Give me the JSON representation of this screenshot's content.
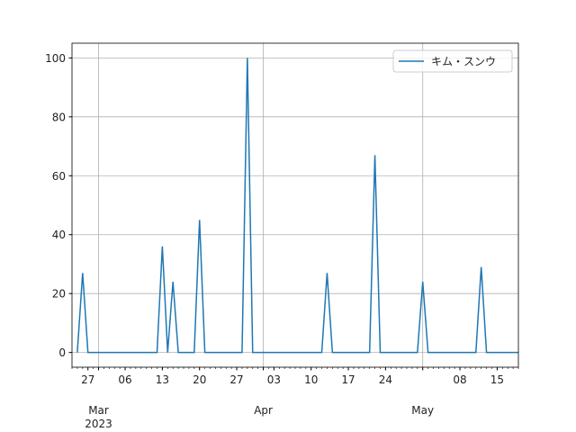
{
  "chart_data": {
    "type": "line",
    "x": [
      "2023-02-25",
      "2023-02-26",
      "2023-02-27",
      "2023-03-12",
      "2023-03-13",
      "2023-03-14",
      "2023-03-15",
      "2023-03-16",
      "2023-03-19",
      "2023-03-20",
      "2023-03-21",
      "2023-03-28",
      "2023-03-29",
      "2023-03-30",
      "2023-04-12",
      "2023-04-13",
      "2023-04-14",
      "2023-04-21",
      "2023-04-22",
      "2023-04-23",
      "2023-04-30",
      "2023-05-01",
      "2023-05-02",
      "2023-05-11",
      "2023-05-12",
      "2023-05-13",
      "2023-05-19"
    ],
    "series": [
      {
        "name": "キム・スンウ",
        "color": "#1f77b4",
        "values": [
          0,
          27,
          0,
          0,
          36,
          0,
          24,
          0,
          0,
          45,
          0,
          0,
          100,
          0,
          0,
          27,
          0,
          0,
          67,
          0,
          0,
          24,
          0,
          0,
          29,
          0,
          0
        ]
      }
    ],
    "xlim": [
      "2023-02-24",
      "2023-05-19"
    ],
    "xticks": [
      {
        "value": "2023-02-27",
        "label": "27"
      },
      {
        "value": "2023-03-06",
        "label": "06"
      },
      {
        "value": "2023-03-13",
        "label": "13"
      },
      {
        "value": "2023-03-20",
        "label": "20"
      },
      {
        "value": "2023-03-27",
        "label": "27"
      },
      {
        "value": "2023-04-03",
        "label": "03"
      },
      {
        "value": "2023-04-10",
        "label": "10"
      },
      {
        "value": "2023-04-17",
        "label": "17"
      },
      {
        "value": "2023-04-24",
        "label": "24"
      },
      {
        "value": "2023-05-08",
        "label": "08"
      },
      {
        "value": "2023-05-15",
        "label": "15"
      }
    ],
    "x_major_ticks": [
      {
        "value": "2023-03-01",
        "label": "Mar"
      },
      {
        "value": "2023-04-01",
        "label": "Apr"
      },
      {
        "value": "2023-05-01",
        "label": "May"
      }
    ],
    "x_offset_label": "2023",
    "ylim": [
      -5,
      105
    ],
    "yticks": [
      0,
      20,
      40,
      60,
      80,
      100
    ],
    "grid": true,
    "legend": "upper right"
  }
}
